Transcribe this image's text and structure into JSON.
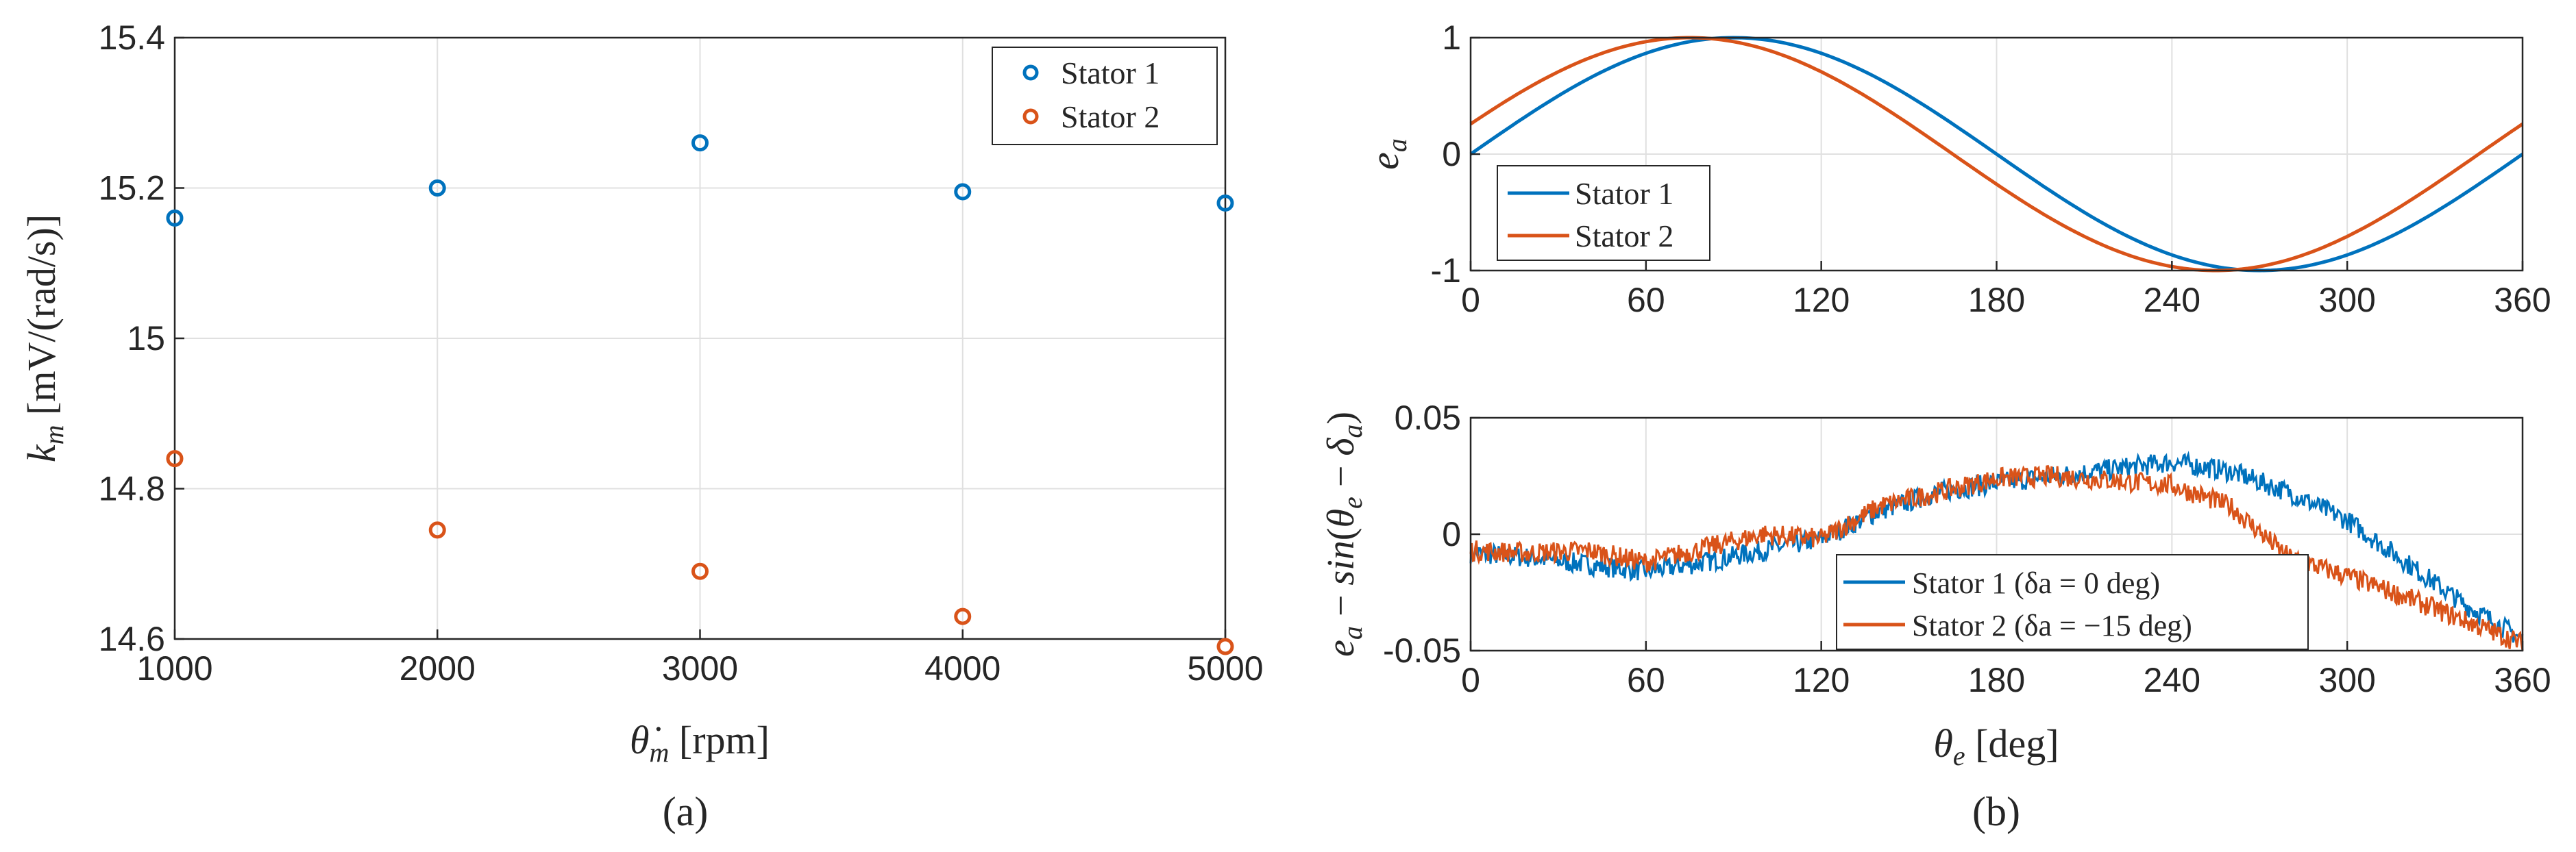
{
  "colors": {
    "stator1": "#0072BD",
    "stator2": "#D95319",
    "axis": "#262626",
    "grid": "#e0e0e0"
  },
  "chart_data": [
    {
      "id": "a",
      "type": "scatter",
      "caption": "(a)",
      "xlabel": "θ̇m [rpm]",
      "ylabel": "km [mV/(rad/s)]",
      "xlim": [
        1000,
        5000
      ],
      "ylim": [
        14.6,
        15.4
      ],
      "xticks": [
        "1000",
        "2000",
        "3000",
        "4000",
        "5000"
      ],
      "yticks": [
        "14.6",
        "14.8",
        "15",
        "15.2",
        "15.4"
      ],
      "grid": true,
      "legend_position": "top-right",
      "series": [
        {
          "name": "Stator 1",
          "x": [
            1000,
            2000,
            3000,
            4000,
            5000
          ],
          "y": [
            15.16,
            15.2,
            15.26,
            15.195,
            15.18
          ]
        },
        {
          "name": "Stator 2",
          "x": [
            1000,
            2000,
            3000,
            4000,
            5000
          ],
          "y": [
            14.84,
            14.745,
            14.69,
            14.63,
            14.59
          ]
        }
      ]
    },
    {
      "id": "b-top",
      "type": "line",
      "xlabel": "",
      "ylabel": "ea",
      "xlim": [
        0,
        360
      ],
      "ylim": [
        -1,
        1
      ],
      "xticks": [
        "0",
        "60",
        "120",
        "180",
        "240",
        "300",
        "360"
      ],
      "yticks": [
        "-1",
        "0",
        "1"
      ],
      "grid": true,
      "legend_position": "bottom-left",
      "series": [
        {
          "name": "Stator 1",
          "function": "sin(θe)",
          "phase_deg": 0
        },
        {
          "name": "Stator 2",
          "function": "sin(θe + 15)",
          "phase_deg": 15
        }
      ]
    },
    {
      "id": "b-bottom",
      "type": "line",
      "caption": "(b)",
      "xlabel": "θe [deg]",
      "ylabel": "ea − sin(θe − δa)",
      "xlim": [
        0,
        360
      ],
      "ylim": [
        -0.05,
        0.05
      ],
      "xticks": [
        "0",
        "60",
        "120",
        "180",
        "240",
        "300",
        "360"
      ],
      "yticks": [
        "-0.05",
        "0",
        "0.05"
      ],
      "grid": true,
      "legend_position": "bottom-center",
      "series": [
        {
          "name": "Stator 1 (δa = 0 deg)",
          "x": [
            0,
            20,
            40,
            60,
            80,
            100,
            120,
            140,
            160,
            180,
            200,
            220,
            240,
            260,
            280,
            300,
            320,
            340,
            360
          ],
          "y": [
            -0.008,
            -0.01,
            -0.013,
            -0.016,
            -0.012,
            -0.007,
            -0.002,
            0.01,
            0.018,
            0.022,
            0.025,
            0.028,
            0.031,
            0.027,
            0.018,
            0.006,
            -0.012,
            -0.03,
            -0.045
          ]
        },
        {
          "name": "Stator 2 (δa = −15 deg)",
          "x": [
            0,
            20,
            40,
            60,
            80,
            100,
            120,
            140,
            160,
            180,
            200,
            220,
            240,
            260,
            280,
            300,
            320,
            340,
            360
          ],
          "y": [
            -0.007,
            -0.008,
            -0.007,
            -0.012,
            -0.006,
            0.0,
            -0.002,
            0.012,
            0.018,
            0.024,
            0.025,
            0.023,
            0.021,
            0.012,
            -0.01,
            -0.018,
            -0.027,
            -0.037,
            -0.047
          ]
        }
      ]
    }
  ]
}
